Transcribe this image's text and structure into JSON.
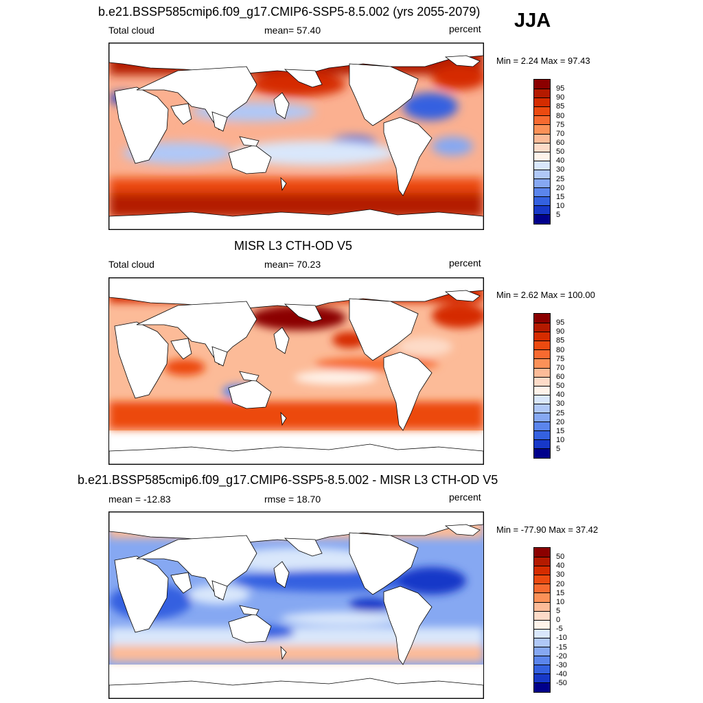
{
  "season": "JJA",
  "panels": [
    {
      "title": "b.e21.BSSP585cmip6.f09_g17.CMIP6-SSP5-8.5.002 (yrs 2055-2079)",
      "left_label": "Total cloud",
      "center_label": "mean=  57.40",
      "right_label": "percent",
      "minmax": "Min =   2.24 Max =  97.43",
      "colorbar": {
        "labels": [
          "95",
          "90",
          "85",
          "80",
          "75",
          "70",
          "60",
          "50",
          "40",
          "30",
          "25",
          "20",
          "15",
          "10",
          "5"
        ],
        "colors": [
          "#8b0000",
          "#b41a00",
          "#d52c00",
          "#ec4a10",
          "#f76a30",
          "#fb9158",
          "#fcbb98",
          "#fddbc8",
          "#fef3ea",
          "#d9e7fb",
          "#b0c8f7",
          "#86a8f2",
          "#5b85ec",
          "#3461e0",
          "#1738c8",
          "#00008b"
        ]
      }
    },
    {
      "title": "MISR L3 CTH-OD V5",
      "left_label": "Total cloud",
      "center_label": "mean=  70.23",
      "right_label": "percent",
      "minmax": "Min =   2.62 Max = 100.00",
      "colorbar": {
        "labels": [
          "95",
          "90",
          "85",
          "80",
          "75",
          "70",
          "60",
          "50",
          "40",
          "30",
          "25",
          "20",
          "15",
          "10",
          "5"
        ],
        "colors": [
          "#8b0000",
          "#b41a00",
          "#d52c00",
          "#ec4a10",
          "#f76a30",
          "#fb9158",
          "#fcbb98",
          "#fddbc8",
          "#fef3ea",
          "#d9e7fb",
          "#b0c8f7",
          "#86a8f2",
          "#5b85ec",
          "#3461e0",
          "#1738c8",
          "#00008b"
        ]
      }
    },
    {
      "title": "b.e21.BSSP585cmip6.f09_g17.CMIP6-SSP5-8.5.002 - MISR L3 CTH-OD V5",
      "left_label": "mean = -12.83",
      "center_label": "rmse =  18.70",
      "right_label": "percent",
      "minmax": "Min = -77.90 Max =  37.42",
      "colorbar": {
        "labels": [
          "50",
          "40",
          "30",
          "20",
          "15",
          "10",
          "5",
          "0",
          "-5",
          "-10",
          "-15",
          "-20",
          "-30",
          "-40",
          "-50"
        ],
        "colors": [
          "#8b0000",
          "#b41a00",
          "#d52c00",
          "#ec4a10",
          "#f76a30",
          "#fb9158",
          "#fcbb98",
          "#fddbc8",
          "#fef3ea",
          "#d9e7fb",
          "#b0c8f7",
          "#86a8f2",
          "#5b85ec",
          "#3461e0",
          "#1738c8",
          "#00008b"
        ]
      }
    }
  ]
}
